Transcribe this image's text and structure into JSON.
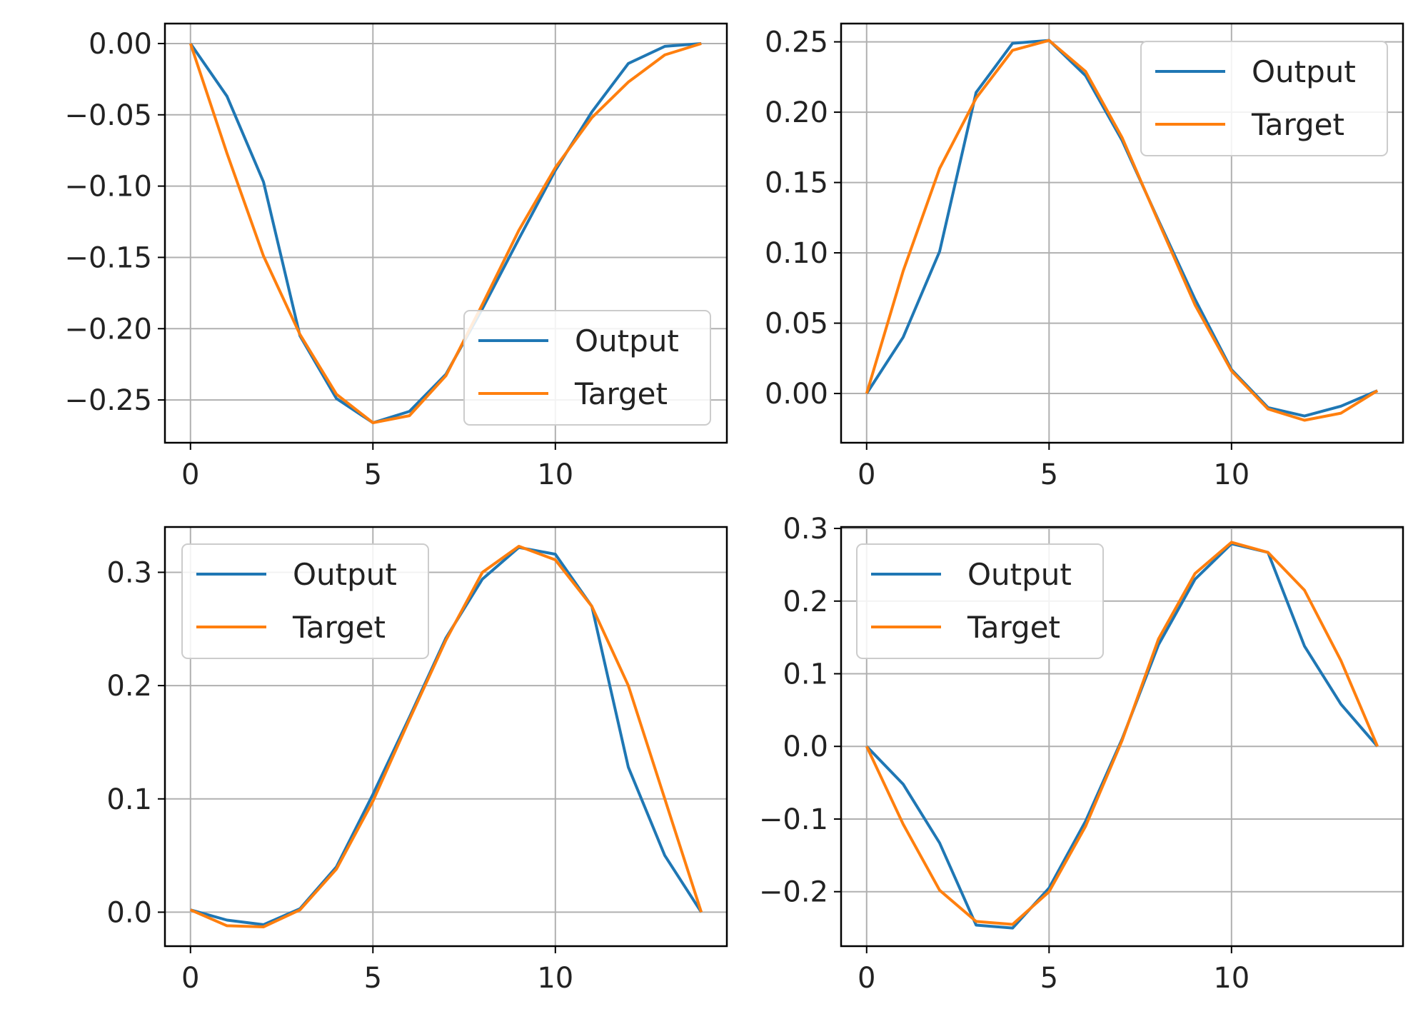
{
  "colors": {
    "output": "#1f77b4",
    "target": "#ff7f0e",
    "grid": "#b0b0b0",
    "axes": "#000000",
    "legend_border": "#cccccc"
  },
  "chart_data": [
    {
      "type": "line",
      "grid": true,
      "legend_placement": "lower-right",
      "xlim": [
        -0.7,
        14.7
      ],
      "ylim": [
        -0.28,
        0.014
      ],
      "xticks": [
        0,
        5,
        10
      ],
      "xtick_labels": [
        "0",
        "5",
        "10"
      ],
      "yticks": [
        0.0,
        -0.05,
        -0.1,
        -0.15,
        -0.2,
        -0.25
      ],
      "ytick_labels": [
        "0.00",
        "−0.05",
        "−0.10",
        "−0.15",
        "−0.20",
        "−0.25"
      ],
      "x": [
        0,
        1,
        2,
        3,
        4,
        5,
        6,
        7,
        8,
        9,
        10,
        11,
        12,
        13,
        14
      ],
      "series": [
        {
          "name": "Output",
          "color": "#1f77b4",
          "values": [
            0.0,
            -0.037,
            -0.097,
            -0.205,
            -0.249,
            -0.266,
            -0.258,
            -0.232,
            -0.186,
            -0.137,
            -0.089,
            -0.048,
            -0.014,
            -0.002,
            0.0
          ]
        },
        {
          "name": "Target",
          "color": "#ff7f0e",
          "values": [
            0.0,
            -0.077,
            -0.149,
            -0.204,
            -0.246,
            -0.266,
            -0.261,
            -0.233,
            -0.183,
            -0.131,
            -0.087,
            -0.052,
            -0.027,
            -0.008,
            0.0
          ]
        }
      ]
    },
    {
      "type": "line",
      "grid": true,
      "legend_placement": "upper-right",
      "xlim": [
        -0.7,
        14.7
      ],
      "ylim": [
        -0.035,
        0.263
      ],
      "xticks": [
        0,
        5,
        10
      ],
      "xtick_labels": [
        "0",
        "5",
        "10"
      ],
      "yticks": [
        0.0,
        0.05,
        0.1,
        0.15,
        0.2,
        0.25
      ],
      "ytick_labels": [
        "0.00",
        "0.05",
        "0.10",
        "0.15",
        "0.20",
        "0.25"
      ],
      "x": [
        0,
        1,
        2,
        3,
        4,
        5,
        6,
        7,
        8,
        9,
        10,
        11,
        12,
        13,
        14
      ],
      "series": [
        {
          "name": "Output",
          "color": "#1f77b4",
          "values": [
            0.0,
            0.04,
            0.101,
            0.214,
            0.249,
            0.251,
            0.226,
            0.18,
            0.123,
            0.067,
            0.017,
            -0.01,
            -0.016,
            -0.009,
            0.002
          ]
        },
        {
          "name": "Target",
          "color": "#ff7f0e",
          "values": [
            0.0,
            0.087,
            0.16,
            0.21,
            0.244,
            0.251,
            0.229,
            0.182,
            0.122,
            0.063,
            0.016,
            -0.011,
            -0.019,
            -0.014,
            0.002
          ]
        }
      ]
    },
    {
      "type": "line",
      "grid": true,
      "legend_placement": "upper-left",
      "xlim": [
        -0.7,
        14.7
      ],
      "ylim": [
        -0.03,
        0.34
      ],
      "xticks": [
        0,
        5,
        10
      ],
      "xtick_labels": [
        "0",
        "5",
        "10"
      ],
      "yticks": [
        0.0,
        0.1,
        0.2,
        0.3
      ],
      "ytick_labels": [
        "0.0",
        "0.1",
        "0.2",
        "0.3"
      ],
      "x": [
        0,
        1,
        2,
        3,
        4,
        5,
        6,
        7,
        8,
        9,
        10,
        11,
        12,
        13,
        14
      ],
      "series": [
        {
          "name": "Output",
          "color": "#1f77b4",
          "values": [
            0.002,
            -0.007,
            -0.011,
            0.003,
            0.04,
            0.104,
            0.172,
            0.242,
            0.294,
            0.322,
            0.316,
            0.27,
            0.128,
            0.05,
            0.0
          ]
        },
        {
          "name": "Target",
          "color": "#ff7f0e",
          "values": [
            0.002,
            -0.012,
            -0.013,
            0.002,
            0.038,
            0.098,
            0.17,
            0.24,
            0.3,
            0.323,
            0.311,
            0.27,
            0.2,
            0.1,
            0.0
          ]
        }
      ]
    },
    {
      "type": "line",
      "grid": true,
      "legend_placement": "upper-left",
      "xlim": [
        -0.7,
        14.7
      ],
      "ylim": [
        -0.275,
        0.302
      ],
      "xticks": [
        0,
        5,
        10
      ],
      "xtick_labels": [
        "0",
        "5",
        "10"
      ],
      "yticks": [
        -0.2,
        -0.1,
        0.0,
        0.1,
        0.2,
        0.3
      ],
      "ytick_labels": [
        "−0.2",
        "−0.1",
        "0.0",
        "0.1",
        "0.2",
        "0.3"
      ],
      "x": [
        0,
        1,
        2,
        3,
        4,
        5,
        6,
        7,
        8,
        9,
        10,
        11,
        12,
        13,
        14
      ],
      "series": [
        {
          "name": "Output",
          "color": "#1f77b4",
          "values": [
            0.0,
            -0.052,
            -0.133,
            -0.246,
            -0.25,
            -0.195,
            -0.103,
            0.01,
            0.14,
            0.23,
            0.279,
            0.267,
            0.138,
            0.058,
            0.0
          ]
        },
        {
          "name": "Target",
          "color": "#ff7f0e",
          "values": [
            0.0,
            -0.107,
            -0.198,
            -0.241,
            -0.245,
            -0.2,
            -0.11,
            0.008,
            0.148,
            0.238,
            0.281,
            0.267,
            0.215,
            0.118,
            0.0
          ]
        }
      ]
    }
  ]
}
